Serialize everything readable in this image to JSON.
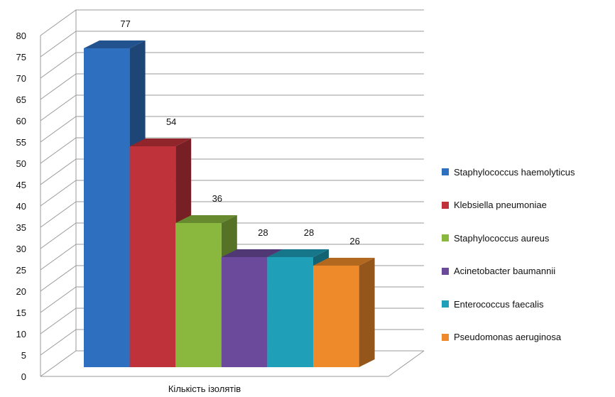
{
  "chart_data": {
    "type": "bar",
    "style": "3d",
    "title": "",
    "xlabel": "Кількість ізолятів",
    "ylabel": "",
    "ylim": [
      0,
      80
    ],
    "ytick_step": 5,
    "grid": true,
    "legend_position": "right",
    "show_data_labels": true,
    "series": [
      {
        "name": "Staphylococcus haemolyticus",
        "value": 77,
        "color": "#2f6fbf"
      },
      {
        "name": "Klebsiella pneumoniae",
        "value": 54,
        "color": "#c0323a"
      },
      {
        "name": "Staphylococcus aureus",
        "value": 36,
        "color": "#8ab83f"
      },
      {
        "name": "Acinetobacter baumannii",
        "value": 28,
        "color": "#6b4a9c"
      },
      {
        "name": "Enterococcus faecalis",
        "value": 28,
        "color": "#1f9fb8"
      },
      {
        "name": "Pseudomonas aeruginosa",
        "value": 26,
        "color": "#ee8a2a"
      }
    ]
  }
}
